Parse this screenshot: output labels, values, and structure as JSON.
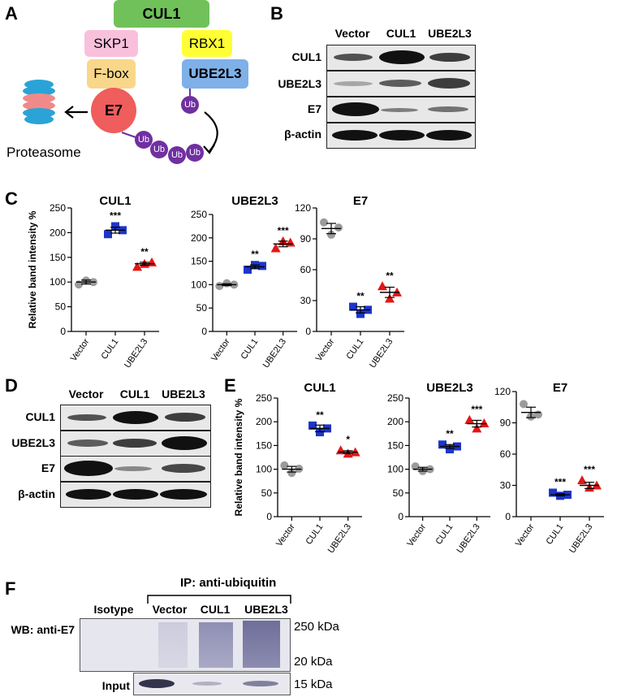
{
  "panels": {
    "A": "A",
    "B": "B",
    "C": "C",
    "D": "D",
    "E": "E",
    "F": "F"
  },
  "schematic": {
    "cul1": "CUL1",
    "skp1": "SKP1",
    "rbx1": "RBX1",
    "fbox": "F-box",
    "ube2l3": "UBE2L3",
    "e7": "E7",
    "ub": "Ub",
    "proteasome": "Proteasome",
    "colors": {
      "cul1": "#70c15a",
      "skp1": "#f9c0dc",
      "rbx1": "#ffff33",
      "fbox": "#f9d78a",
      "ube2l3": "#7fb0e8",
      "e7": "#ef5d5d",
      "ub": "#7030a0"
    }
  },
  "blotB": {
    "lanes": [
      "Vector",
      "CUL1",
      "UBE2L3"
    ],
    "rows": [
      "CUL1",
      "UBE2L3",
      "E7",
      "β-actin"
    ]
  },
  "blotD": {
    "lanes": [
      "Vector",
      "CUL1",
      "UBE2L3"
    ],
    "rows": [
      "CUL1",
      "UBE2L3",
      "E7",
      "β-actin"
    ]
  },
  "blotF": {
    "ip_header": "IP: anti-ubiquitin",
    "lanes": [
      "Isotype",
      "Vector",
      "CUL1",
      "UBE2L3"
    ],
    "wb_label": "WB: anti-E7",
    "input_label": "Input",
    "markers": [
      "250 kDa",
      "20 kDa",
      "15 kDa"
    ]
  },
  "chart_data": [
    {
      "panel": "C",
      "type": "scatter",
      "title": "CUL1",
      "ylabel": "Relative band intensity %",
      "categories": [
        "Vector",
        "CUL1",
        "UBE2L3"
      ],
      "ylim": [
        0,
        250
      ],
      "yticks": [
        0,
        50,
        100,
        150,
        200,
        250
      ],
      "points": [
        [
          95,
          103,
          100
        ],
        [
          197,
          213,
          205
        ],
        [
          131,
          137,
          140
        ]
      ],
      "means": [
        100,
        205,
        137
      ],
      "sems": [
        4,
        6,
        3
      ],
      "sig": [
        "",
        "***",
        "**"
      ]
    },
    {
      "panel": "C",
      "type": "scatter",
      "title": "UBE2L3",
      "ylabel": "",
      "categories": [
        "Vector",
        "CUL1",
        "UBE2L3"
      ],
      "ylim": [
        0,
        250
      ],
      "yticks": [
        0,
        50,
        100,
        150,
        200,
        250
      ],
      "points": [
        [
          97,
          103,
          100
        ],
        [
          132,
          142,
          140
        ],
        [
          178,
          193,
          190
        ]
      ],
      "means": [
        100,
        138,
        187
      ],
      "sems": [
        2,
        4,
        6
      ],
      "sig": [
        "",
        "**",
        "***"
      ]
    },
    {
      "panel": "C",
      "type": "scatter",
      "title": "E7",
      "ylabel": "",
      "categories": [
        "Vector",
        "CUL1",
        "UBE2L3"
      ],
      "ylim": [
        0,
        120
      ],
      "yticks": [
        0,
        30,
        60,
        90,
        120
      ],
      "points": [
        [
          106,
          94,
          101
        ],
        [
          24,
          17,
          21
        ],
        [
          44,
          32,
          38
        ]
      ],
      "means": [
        100,
        21,
        38
      ],
      "sems": [
        5,
        3,
        5
      ],
      "sig": [
        "",
        "**",
        "**"
      ]
    },
    {
      "panel": "E",
      "type": "scatter",
      "title": "CUL1",
      "ylabel": "Relative band intensity %",
      "categories": [
        "Vector",
        "CUL1",
        "UBE2L3"
      ],
      "ylim": [
        0,
        250
      ],
      "yticks": [
        0,
        50,
        100,
        150,
        200,
        250
      ],
      "points": [
        [
          108,
          92,
          101
        ],
        [
          192,
          178,
          186
        ],
        [
          140,
          133,
          136
        ]
      ],
      "means": [
        100,
        186,
        136
      ],
      "sems": [
        6,
        7,
        3
      ],
      "sig": [
        "",
        "**",
        "*"
      ]
    },
    {
      "panel": "E",
      "type": "scatter",
      "title": "UBE2L3",
      "ylabel": "",
      "categories": [
        "Vector",
        "CUL1",
        "UBE2L3"
      ],
      "ylim": [
        0,
        250
      ],
      "yticks": [
        0,
        50,
        100,
        150,
        200,
        250
      ],
      "points": [
        [
          106,
          96,
          100
        ],
        [
          152,
          142,
          148
        ],
        [
          204,
          186,
          197
        ]
      ],
      "means": [
        100,
        148,
        196
      ],
      "sems": [
        4,
        4,
        7
      ],
      "sig": [
        "",
        "**",
        "***"
      ]
    },
    {
      "panel": "E",
      "type": "scatter",
      "title": "E7",
      "ylabel": "",
      "categories": [
        "Vector",
        "CUL1",
        "UBE2L3"
      ],
      "ylim": [
        0,
        120
      ],
      "yticks": [
        0,
        30,
        60,
        90,
        120
      ],
      "points": [
        [
          108,
          96,
          98
        ],
        [
          23,
          20,
          21
        ],
        [
          35,
          28,
          30
        ]
      ],
      "means": [
        100,
        21,
        30
      ],
      "sems": [
        5,
        1,
        3
      ],
      "sig": [
        "",
        "***",
        "***"
      ]
    }
  ]
}
